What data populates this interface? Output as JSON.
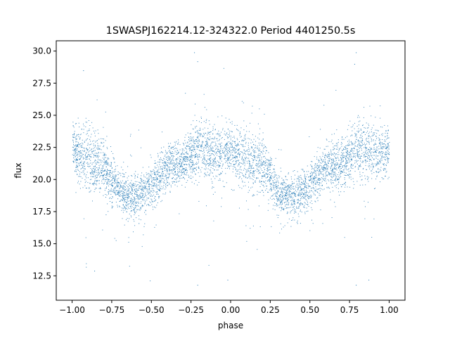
{
  "chart_data": {
    "type": "scatter",
    "title": "1SWASPJ162214.12-324322.0 Period 4401250.5s",
    "xlabel": "phase",
    "ylabel": "flux",
    "xlim": [
      -1.1,
      1.1
    ],
    "ylim": [
      10.6,
      30.8
    ],
    "x_ticks": [
      -1.0,
      -0.75,
      -0.5,
      -0.25,
      0.0,
      0.25,
      0.5,
      0.75,
      1.0
    ],
    "x_tick_labels": [
      "−1.00",
      "−0.75",
      "−0.50",
      "−0.25",
      "0.00",
      "0.25",
      "0.50",
      "0.75",
      "1.00"
    ],
    "y_ticks": [
      12.5,
      15.0,
      17.5,
      20.0,
      22.5,
      25.0,
      27.5,
      30.0
    ],
    "y_tick_labels": [
      "12.5",
      "15.0",
      "17.5",
      "20.0",
      "22.5",
      "25.0",
      "27.5",
      "30.0"
    ],
    "grid": false,
    "marker_color": "#1f77b4",
    "phase_range": [
      -1.0,
      1.0
    ],
    "flux_profile": {
      "phase": [
        -1.0,
        -0.9,
        -0.8,
        -0.7,
        -0.6,
        -0.5,
        -0.4,
        -0.3,
        -0.2,
        -0.1,
        0.0,
        0.1,
        0.2,
        0.3,
        0.4,
        0.5,
        0.6,
        0.7,
        0.8,
        0.9,
        1.0
      ],
      "mean_flux": [
        22.3,
        21.6,
        21.1,
        19.0,
        18.6,
        19.5,
        21.0,
        21.3,
        22.4,
        22.0,
        22.3,
        21.6,
        21.1,
        19.0,
        18.6,
        19.5,
        21.0,
        21.3,
        22.4,
        22.0,
        22.3
      ],
      "scatter": [
        1.2,
        1.7,
        1.5,
        1.0,
        1.1,
        1.2,
        1.2,
        1.2,
        1.6,
        1.5,
        1.2,
        1.7,
        1.5,
        1.0,
        1.1,
        1.2,
        1.2,
        1.2,
        1.6,
        1.5,
        1.2
      ]
    },
    "series": [
      {
        "name": "",
        "notable_points": [
          {
            "x": -0.23,
            "y": 29.9
          },
          {
            "x": -0.21,
            "y": 29.2
          },
          {
            "x": 0.79,
            "y": 29.9
          },
          {
            "x": 0.78,
            "y": 29.0
          },
          {
            "x": -0.93,
            "y": 28.5
          },
          {
            "x": -0.86,
            "y": 12.9
          },
          {
            "x": -0.21,
            "y": 11.8
          },
          {
            "x": -0.02,
            "y": 12.2
          },
          {
            "x": 0.79,
            "y": 11.8
          },
          {
            "x": 0.87,
            "y": 12.2
          },
          {
            "x": -0.58,
            "y": 16.6
          },
          {
            "x": 0.42,
            "y": 16.6
          }
        ]
      }
    ]
  }
}
